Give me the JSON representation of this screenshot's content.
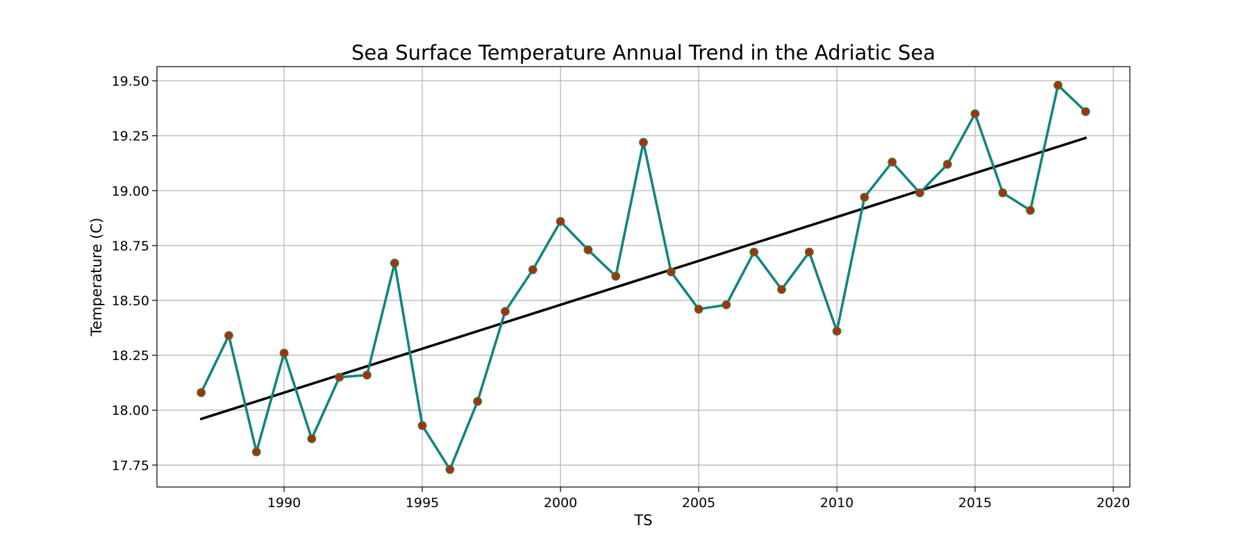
{
  "chart_data": {
    "type": "line",
    "title": "Sea Surface Temperature Annual Trend in the Adriatic Sea",
    "xlabel": "TS",
    "ylabel": "Temperature (C)",
    "xlim": [
      1985.4,
      2020.6
    ],
    "ylim": [
      17.65,
      19.565
    ],
    "xticks": [
      1990,
      1995,
      2000,
      2005,
      2010,
      2015,
      2020
    ],
    "yticks": [
      17.75,
      18.0,
      18.25,
      18.5,
      18.75,
      19.0,
      19.25,
      19.5
    ],
    "ytick_labels": [
      "17.75",
      "18.00",
      "18.25",
      "18.50",
      "18.75",
      "19.00",
      "19.25",
      "19.50"
    ],
    "grid": true,
    "series": [
      {
        "x": [
          1987,
          1988,
          1989,
          1990,
          1991,
          1992,
          1993,
          1994,
          1995,
          1996,
          1997,
          1998,
          1999,
          2000,
          2001,
          2002,
          2003,
          2004,
          2005,
          2006,
          2007,
          2008,
          2009,
          2010,
          2011,
          2012,
          2013,
          2014,
          2015,
          2016,
          2017,
          2018,
          2019
        ],
        "values": [
          18.08,
          18.34,
          17.81,
          18.26,
          17.87,
          18.15,
          18.16,
          18.67,
          17.93,
          17.73,
          18.04,
          18.45,
          18.64,
          18.86,
          18.73,
          18.61,
          19.22,
          18.63,
          18.46,
          18.48,
          18.72,
          18.55,
          18.72,
          18.36,
          18.97,
          19.13,
          18.99,
          19.12,
          19.35,
          18.99,
          18.91,
          19.48,
          19.36
        ],
        "color": "#138480",
        "marker_face": "#b22a10",
        "marker_edge": "#3a7a2a"
      },
      {
        "x": [
          1987,
          2019
        ],
        "values": [
          17.96,
          19.24
        ],
        "color": "#000000",
        "role": "trend"
      }
    ]
  }
}
